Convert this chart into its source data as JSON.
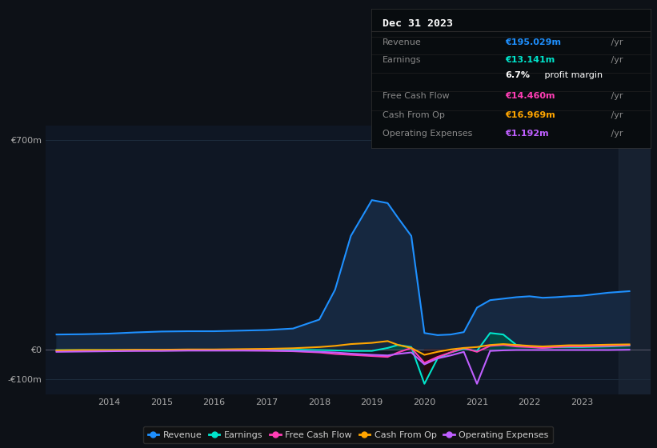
{
  "background_color": "#0d1117",
  "plot_bg_color": "#0f1724",
  "grid_color": "#1e2d3d",
  "years": [
    2013.0,
    2013.5,
    2014.0,
    2014.5,
    2015.0,
    2015.5,
    2016.0,
    2016.5,
    2017.0,
    2017.5,
    2018.0,
    2018.3,
    2018.6,
    2019.0,
    2019.3,
    2019.5,
    2019.75,
    2020.0,
    2020.25,
    2020.5,
    2020.75,
    2021.0,
    2021.25,
    2021.5,
    2021.75,
    2022.0,
    2022.25,
    2022.5,
    2022.75,
    2023.0,
    2023.5,
    2023.9
  ],
  "revenue": [
    50,
    51,
    53,
    57,
    60,
    61,
    61,
    63,
    65,
    70,
    100,
    200,
    380,
    500,
    490,
    440,
    380,
    55,
    48,
    50,
    58,
    140,
    165,
    170,
    175,
    178,
    173,
    175,
    178,
    180,
    190,
    195
  ],
  "earnings": [
    -2,
    -2,
    -2,
    -2,
    -2,
    -1,
    -1,
    -1,
    -1,
    -1,
    -2,
    -3,
    -5,
    -5,
    5,
    15,
    8,
    -115,
    -30,
    -10,
    2,
    -5,
    55,
    50,
    15,
    10,
    5,
    8,
    8,
    8,
    10,
    13
  ],
  "free_cash_flow": [
    -5,
    -5,
    -4,
    -4,
    -3,
    -3,
    -3,
    -3,
    -4,
    -6,
    -10,
    -15,
    -18,
    -22,
    -25,
    -10,
    5,
    -45,
    -25,
    -10,
    5,
    -8,
    12,
    15,
    10,
    8,
    5,
    8,
    10,
    10,
    12,
    14
  ],
  "cash_from_op": [
    -3,
    -2,
    -2,
    -1,
    -1,
    0,
    0,
    1,
    2,
    4,
    8,
    12,
    18,
    22,
    28,
    15,
    5,
    -18,
    -8,
    0,
    5,
    8,
    15,
    18,
    15,
    12,
    10,
    12,
    14,
    14,
    16,
    17
  ],
  "operating_expenses": [
    -8,
    -7,
    -6,
    -5,
    -5,
    -4,
    -4,
    -4,
    -4,
    -5,
    -8,
    -10,
    -14,
    -18,
    -20,
    -15,
    -10,
    -50,
    -30,
    -20,
    -8,
    -115,
    -5,
    -3,
    -2,
    -2,
    -2,
    -2,
    -2,
    -2,
    -2,
    -1
  ],
  "revenue_color": "#1e90ff",
  "revenue_fill": "#162840",
  "earnings_color": "#00e5cc",
  "free_cash_flow_color": "#ff3eb5",
  "cash_from_op_color": "#ffa500",
  "operating_expenses_color": "#bf5fff",
  "ylim": [
    -150,
    750
  ],
  "ytick_vals": [
    -100,
    0,
    700
  ],
  "ytick_labels": [
    "-€100m",
    "€0",
    "€700m"
  ],
  "xticks": [
    2014,
    2015,
    2016,
    2017,
    2018,
    2019,
    2020,
    2021,
    2022,
    2023
  ],
  "xlim": [
    2012.8,
    2024.3
  ],
  "title_text": "Dec 31 2023",
  "table_rows": [
    {
      "label": "Revenue",
      "value": "€195.029m /yr",
      "color": "#1e90ff"
    },
    {
      "label": "Earnings",
      "value": "€13.141m /yr",
      "color": "#00e5cc"
    },
    {
      "label": "",
      "value": "6.7% profit margin",
      "color": "#ffffff"
    },
    {
      "label": "Free Cash Flow",
      "value": "€14.460m /yr",
      "color": "#ff3eb5"
    },
    {
      "label": "Cash From Op",
      "value": "€16.969m /yr",
      "color": "#ffa500"
    },
    {
      "label": "Operating Expenses",
      "value": "€1.192m /yr",
      "color": "#bf5fff"
    }
  ],
  "legend_items": [
    "Revenue",
    "Earnings",
    "Free Cash Flow",
    "Cash From Op",
    "Operating Expenses"
  ],
  "legend_colors": [
    "#1e90ff",
    "#00e5cc",
    "#ff3eb5",
    "#ffa500",
    "#bf5fff"
  ]
}
